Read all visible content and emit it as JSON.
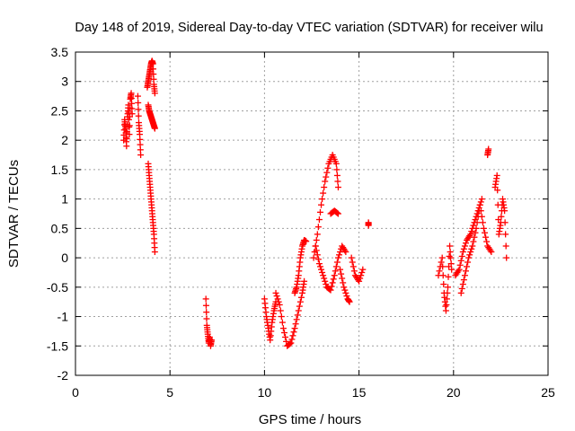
{
  "chart_data": {
    "type": "scatter",
    "title": "Day 148 of 2019, Sidereal Day-to-day VTEC variation (SDTVAR) for receiver wilu",
    "xlabel": "GPS time / hours",
    "ylabel": "SDTVAR / TECUs",
    "xlim": [
      0,
      25
    ],
    "ylim": [
      -2,
      3.5
    ],
    "xticks": [
      0,
      5,
      10,
      15,
      20,
      25
    ],
    "xtick_labels": [
      "0",
      "5",
      "10",
      "15",
      "20",
      "25"
    ],
    "yticks": [
      -2,
      -1.5,
      -1,
      -0.5,
      0,
      0.5,
      1,
      1.5,
      2,
      2.5,
      3,
      3.5
    ],
    "ytick_labels": [
      "-2",
      "-1.5",
      "-1",
      "-0.5",
      "0",
      "0.5",
      "1",
      "1.5",
      "2",
      "2.5",
      "3",
      "3.5"
    ],
    "grid": true,
    "marker": "+",
    "color": "#ff0000",
    "series": [
      {
        "name": "wilu",
        "segments": [
          [
            [
              2.55,
              2.0
            ],
            [
              2.6,
              2.35
            ],
            [
              2.65,
              2.2
            ],
            [
              2.7,
              1.9
            ],
            [
              2.75,
              2.4
            ],
            [
              2.8,
              2.6
            ],
            [
              2.85,
              2.1
            ],
            [
              2.9,
              2.7
            ],
            [
              2.95,
              2.8
            ],
            [
              3.0,
              2.45
            ]
          ],
          [
            [
              3.3,
              2.75
            ],
            [
              3.35,
              2.3
            ],
            [
              3.4,
              2.1
            ],
            [
              3.45,
              1.75
            ]
          ],
          [
            [
              3.8,
              2.9
            ],
            [
              3.85,
              3.0
            ],
            [
              3.9,
              3.1
            ],
            [
              3.95,
              3.2
            ],
            [
              4.0,
              3.3
            ],
            [
              4.05,
              3.35
            ],
            [
              4.1,
              3.3
            ],
            [
              4.15,
              2.95
            ],
            [
              4.2,
              2.8
            ]
          ],
          [
            [
              3.85,
              2.6
            ],
            [
              3.9,
              2.5
            ],
            [
              3.95,
              2.45
            ],
            [
              4.0,
              2.4
            ],
            [
              4.05,
              2.35
            ],
            [
              4.1,
              2.3
            ],
            [
              4.15,
              2.25
            ],
            [
              4.2,
              2.2
            ]
          ],
          [
            [
              3.85,
              1.6
            ],
            [
              3.9,
              1.4
            ],
            [
              3.95,
              1.2
            ],
            [
              4.0,
              1.0
            ],
            [
              4.05,
              0.8
            ],
            [
              4.1,
              0.6
            ],
            [
              4.15,
              0.4
            ],
            [
              4.2,
              0.1
            ]
          ],
          [
            [
              6.9,
              -0.7
            ],
            [
              6.95,
              -1.15
            ],
            [
              7.0,
              -1.3
            ],
            [
              7.05,
              -1.45
            ],
            [
              7.1,
              -1.35
            ],
            [
              7.15,
              -1.5
            ],
            [
              7.2,
              -1.4
            ]
          ],
          [
            [
              10.0,
              -0.7
            ],
            [
              10.1,
              -1.0
            ],
            [
              10.2,
              -1.2
            ],
            [
              10.3,
              -1.4
            ],
            [
              10.4,
              -1.1
            ],
            [
              10.5,
              -0.9
            ],
            [
              10.6,
              -0.75
            ]
          ],
          [
            [
              10.6,
              -0.6
            ],
            [
              10.8,
              -0.8
            ],
            [
              11.0,
              -1.2
            ],
            [
              11.2,
              -1.5
            ],
            [
              11.4,
              -1.45
            ],
            [
              11.6,
              -1.2
            ],
            [
              11.8,
              -0.9
            ],
            [
              12.0,
              -0.6
            ],
            [
              12.1,
              -0.4
            ]
          ],
          [
            [
              11.6,
              -0.6
            ],
            [
              11.7,
              -0.5
            ],
            [
              11.8,
              -0.3
            ],
            [
              11.9,
              0.0
            ],
            [
              12.0,
              0.2
            ],
            [
              12.1,
              0.3
            ],
            [
              12.2,
              0.28
            ]
          ],
          [
            [
              12.6,
              0.0
            ],
            [
              12.8,
              0.4
            ],
            [
              13.0,
              0.9
            ],
            [
              13.2,
              1.3
            ],
            [
              13.4,
              1.6
            ],
            [
              13.6,
              1.75
            ],
            [
              13.8,
              1.6
            ],
            [
              13.9,
              1.2
            ]
          ],
          [
            [
              12.7,
              0.2
            ],
            [
              12.9,
              -0.1
            ],
            [
              13.1,
              -0.3
            ],
            [
              13.3,
              -0.5
            ],
            [
              13.5,
              -0.55
            ],
            [
              13.7,
              -0.3
            ],
            [
              13.9,
              0.0
            ],
            [
              14.1,
              0.2
            ],
            [
              14.3,
              0.1
            ]
          ],
          [
            [
              13.5,
              0.75
            ],
            [
              13.7,
              0.8
            ],
            [
              13.9,
              0.75
            ]
          ],
          [
            [
              14.0,
              -0.2
            ],
            [
              14.2,
              -0.5
            ],
            [
              14.4,
              -0.7
            ],
            [
              14.5,
              -0.75
            ]
          ],
          [
            [
              14.6,
              0.0
            ],
            [
              14.8,
              -0.3
            ],
            [
              15.0,
              -0.4
            ],
            [
              15.2,
              -0.2
            ]
          ],
          [
            [
              15.5,
              0.6
            ],
            [
              15.5,
              0.55
            ]
          ],
          [
            [
              19.2,
              -0.3
            ],
            [
              19.4,
              0.0
            ],
            [
              19.5,
              -0.6
            ],
            [
              19.6,
              -0.9
            ],
            [
              19.7,
              -0.5
            ],
            [
              19.8,
              0.2
            ],
            [
              19.9,
              -0.2
            ]
          ],
          [
            [
              20.1,
              -0.3
            ],
            [
              20.3,
              -0.2
            ],
            [
              20.5,
              0.1
            ],
            [
              20.7,
              0.3
            ],
            [
              20.9,
              0.4
            ],
            [
              21.1,
              0.6
            ],
            [
              21.3,
              0.8
            ],
            [
              21.5,
              1.0
            ]
          ],
          [
            [
              20.4,
              -0.6
            ],
            [
              20.6,
              -0.3
            ],
            [
              20.8,
              0.0
            ],
            [
              21.0,
              0.2
            ],
            [
              21.2,
              0.5
            ],
            [
              21.4,
              0.9
            ],
            [
              21.6,
              0.5
            ],
            [
              21.8,
              0.2
            ],
            [
              22.0,
              0.1
            ]
          ],
          [
            [
              21.8,
              1.75
            ],
            [
              21.85,
              1.85
            ]
          ],
          [
            [
              22.2,
              1.2
            ],
            [
              22.3,
              1.4
            ],
            [
              22.4,
              0.4
            ],
            [
              22.5,
              0.6
            ],
            [
              22.6,
              1.0
            ],
            [
              22.7,
              0.8
            ],
            [
              22.8,
              0.0
            ]
          ]
        ]
      }
    ]
  }
}
